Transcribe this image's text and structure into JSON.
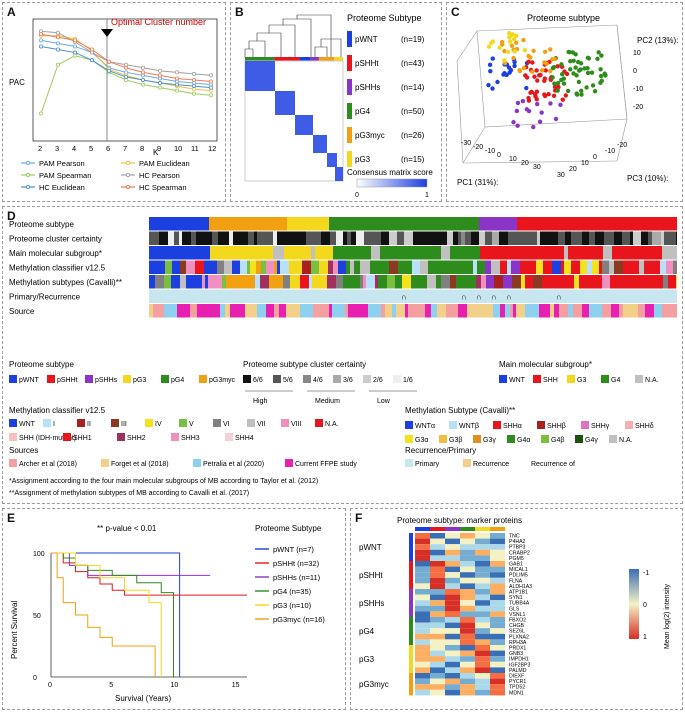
{
  "colors": {
    "wnt": "#1c3fe0",
    "shh_t": "#e8161c",
    "shh_s": "#8a35c8",
    "g4": "#2e8c1c",
    "g3myc": "#f0a010",
    "g3": "#f4d81e"
  },
  "panelA": {
    "label": "A",
    "ylabel": "PAC",
    "xlabel": "K",
    "annotation": "Optimal Cluster number",
    "x_ticks": [
      "2",
      "3",
      "4",
      "5",
      "6",
      "7",
      "8",
      "9",
      "10",
      "11",
      "12"
    ],
    "legend": [
      "PAM Pearson",
      "PAM Euclidean",
      "PAM Spearman",
      "HC Pearson",
      "HC Euclidean",
      "HC Spearman"
    ]
  },
  "panelB": {
    "label": "B",
    "title": "Proteome Subtype",
    "subtypes": [
      {
        "name": "pWNT",
        "n": "(n=19)"
      },
      {
        "name": "pSHHt",
        "n": "(n=43)"
      },
      {
        "name": "pSHHs",
        "n": "(n=14)"
      },
      {
        "name": "pG4",
        "n": "(n=50)"
      },
      {
        "name": "pG3myc",
        "n": "(n=26)"
      },
      {
        "name": "pG3",
        "n": "(n=15)"
      }
    ],
    "scale_title": "Consensus matrix score",
    "scale_min": "0",
    "scale_max": "1"
  },
  "panelC": {
    "label": "C",
    "title": "Proteome subtype",
    "pc1": "PC1 (31%):",
    "pc2": "PC2 (13%):",
    "pc3": "PC3 (10%):",
    "z_ticks": [
      "10",
      "0",
      "-10",
      "-20"
    ],
    "x_ticks": [
      "-30",
      "-20",
      "-10",
      "0",
      "10",
      "20",
      "30"
    ],
    "y_ticks": [
      "30",
      "20",
      "10",
      "0",
      "-10",
      "-20"
    ]
  },
  "panelD": {
    "label": "D",
    "rows": [
      "Proteome subtype",
      "Proteome cluster certainty",
      "Main molecular subgroup*",
      "Methylation classifier v12.5",
      "Methylation subtypes (Cavalli)**",
      "Primary/Recurrence",
      "Source"
    ],
    "leg_subtype_title": "Proteome subtype",
    "leg_subtype": [
      "pWNT",
      "pSHHt",
      "pSHHs",
      "pG3",
      "pG4",
      "pG3myc"
    ],
    "leg_cert_title": "Proteome subtype cluster certainty",
    "leg_cert": [
      "6/6",
      "5/6",
      "4/6",
      "3/6",
      "2/6",
      "1/6"
    ],
    "cert_groups": [
      "High",
      "Medium",
      "Low"
    ],
    "leg_main_title": "Main molecular subgroup*",
    "leg_main": [
      "WNT",
      "SHH",
      "G3",
      "G4",
      "N.A."
    ],
    "leg_meth_title": "Methylation classifier v12.5",
    "leg_meth": [
      "WNT",
      "I",
      "II",
      "III",
      "IV",
      "V",
      "VI",
      "VII",
      "VIII",
      "N.A."
    ],
    "leg_meth2": [
      "SHH (IDH-mutant)",
      "SHH1",
      "SHH2",
      "SHH3",
      "SHH4"
    ],
    "leg_cav_title": "Methylation Subtype (Cavalli)**",
    "leg_cav1": [
      "WNTα",
      "WNTβ",
      "SHHα",
      "SHHβ",
      "SHHγ",
      "SHHδ"
    ],
    "leg_cav2": [
      "G3α",
      "G3β",
      "G3γ",
      "G4α",
      "G4β",
      "G4γ",
      "N.A."
    ],
    "leg_src_title": "Sources",
    "leg_src": [
      "Archer et al (2018)",
      "Forget et al (2018)",
      "Petralia et al (2020)",
      "Current FFPE study"
    ],
    "leg_rec_title": "Recurrence/Primary",
    "leg_rec": [
      "Primary",
      "Recurrence",
      "Recurrence of"
    ],
    "foot1": "*Assignment according to the four main molecular subgroups of MB according to Taylor et al. (2012)",
    "foot2": "**Assignment of methylation subtypes of MB according to Cavalli et al. (2017)"
  },
  "panelE": {
    "label": "E",
    "pvalue": "** p-value < 0.01",
    "legend_title": "Proteome Subtype",
    "legend": [
      "pWNT (n=7)",
      "pSHHt (n=32)",
      "pSHHs (n=11)",
      "pG4 (n=35)",
      "pG3 (n=10)",
      "pG3myc (n=16)"
    ],
    "ylabel": "Percent Survival",
    "xlabel": "Survival (Years)",
    "y_ticks": [
      "100",
      "50",
      "0"
    ],
    "x_ticks": [
      "0",
      "5",
      "10",
      "15"
    ]
  },
  "panelF": {
    "label": "F",
    "title": "Proteome subtype: marker proteins",
    "groups": [
      "pWNT",
      "pSHHt",
      "pSHHs",
      "pG4",
      "pG3",
      "pG3myc"
    ],
    "genes": [
      [
        "TNC",
        "P4HA2",
        "PTBP3",
        "CRABP2",
        "PGM5"
      ],
      [
        "GAB1",
        "MICAL1",
        "PDLIM5",
        "FLNA",
        "ALDH1A3"
      ],
      [
        "ATP1B1",
        "SYN1",
        "TUBB4A",
        "GLS",
        "VSNL1"
      ],
      [
        "FBXO2",
        "CHGB",
        "SEZ6L",
        "PLXNA2",
        "RPH3A"
      ],
      [
        "PRDX1",
        "GNB3",
        "IMPDH1",
        "IGF2BP3",
        "PALMD"
      ],
      [
        "DIEXF",
        "PYCR1",
        "TPD52",
        "MDN1"
      ]
    ],
    "scale_title": "Mean log(2) intensity",
    "scale_max": "-1",
    "scale_mid": "0",
    "scale_min": "1"
  },
  "chart_data": [
    {
      "type": "line",
      "title": "",
      "xlabel": "K",
      "ylabel": "PAC",
      "x": [
        2,
        3,
        4,
        5,
        6,
        7,
        8,
        9,
        10,
        11,
        12
      ],
      "ylim": [
        0,
        0.8
      ],
      "series": [
        {
          "name": "PAM Pearson",
          "values": [
            0.66,
            0.64,
            0.62,
            0.58,
            0.48,
            0.45,
            0.43,
            0.41,
            0.39,
            0.38,
            0.37
          ]
        },
        {
          "name": "PAM Euclidean",
          "values": [
            0.69,
            0.69,
            0.67,
            0.59,
            0.47,
            0.43,
            0.4,
            0.38,
            0.36,
            0.34,
            0.33
          ]
        },
        {
          "name": "PAM Spearman",
          "values": [
            0.18,
            0.5,
            0.56,
            0.53,
            0.45,
            0.4,
            0.37,
            0.35,
            0.33,
            0.31,
            0.3
          ]
        },
        {
          "name": "HC Pearson",
          "values": [
            0.72,
            0.71,
            0.65,
            0.58,
            0.52,
            0.5,
            0.48,
            0.46,
            0.45,
            0.44,
            0.43
          ]
        },
        {
          "name": "HC Euclidean",
          "values": [
            0.62,
            0.6,
            0.58,
            0.53,
            0.46,
            0.42,
            0.4,
            0.38,
            0.37,
            0.36,
            0.35
          ]
        },
        {
          "name": "HC Spearman",
          "values": [
            0.7,
            0.68,
            0.66,
            0.6,
            0.52,
            0.48,
            0.45,
            0.43,
            0.41,
            0.4,
            0.39
          ]
        }
      ]
    },
    {
      "type": "line",
      "title": "Survival",
      "xlabel": "Survival (Years)",
      "ylabel": "Percent Survival",
      "xlim": [
        0,
        16
      ],
      "ylim": [
        0,
        100
      ],
      "series": [
        {
          "name": "pWNT (n=7)",
          "x": [
            0,
            10.5,
            10.5
          ],
          "y": [
            100,
            100,
            0
          ]
        },
        {
          "name": "pSHHt (n=32)",
          "x": [
            0,
            1,
            2,
            3,
            4,
            5,
            6,
            7,
            8,
            16
          ],
          "y": [
            100,
            92,
            85,
            80,
            75,
            70,
            66,
            66,
            66,
            66
          ]
        },
        {
          "name": "pSHHs (n=11)",
          "x": [
            0,
            1.5,
            3,
            5,
            13
          ],
          "y": [
            100,
            90,
            82,
            82,
            82
          ]
        },
        {
          "name": "pG4 (n=35)",
          "x": [
            0,
            1,
            2,
            3,
            5,
            7,
            9,
            10,
            10
          ],
          "y": [
            100,
            96,
            90,
            86,
            82,
            76,
            68,
            58,
            0
          ]
        },
        {
          "name": "pG3 (n=10)",
          "x": [
            0,
            2,
            4,
            6,
            8,
            9,
            9
          ],
          "y": [
            100,
            90,
            80,
            70,
            60,
            50,
            0
          ]
        },
        {
          "name": "pG3myc (n=16)",
          "x": [
            0,
            0.5,
            1,
            2,
            3,
            4,
            5,
            6,
            8,
            8.5,
            8.5
          ],
          "y": [
            100,
            80,
            60,
            50,
            40,
            32,
            25,
            25,
            25,
            25,
            0
          ]
        }
      ]
    }
  ]
}
